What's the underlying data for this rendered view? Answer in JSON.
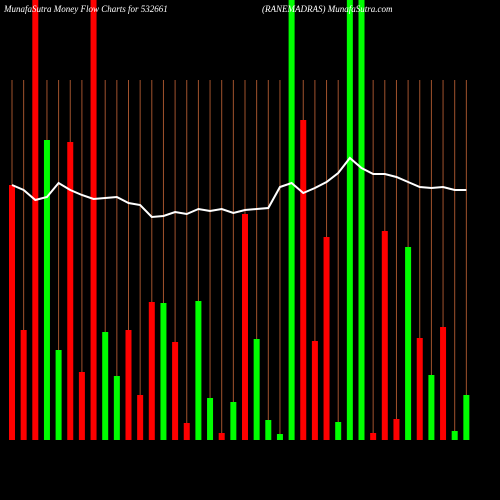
{
  "chart_data": {
    "type": "bar",
    "title": "MunafaSutra  Money Flow  Charts for 532661",
    "subtitle": "(RANEMADRAS) MunafaSutra.com",
    "categories": [
      null,
      null,
      null,
      null,
      null,
      null,
      null,
      null,
      null,
      null,
      null,
      null,
      null,
      null,
      null,
      null,
      null,
      null,
      null,
      null,
      null,
      null,
      null,
      null,
      null,
      null,
      null,
      null,
      null,
      null,
      null,
      null,
      null,
      null,
      null,
      null,
      null,
      null,
      null,
      null
    ],
    "ylim": [
      0,
      440
    ],
    "series": [
      {
        "type": "bar",
        "values": [
          255,
          110,
          440,
          300,
          90,
          298,
          68,
          440,
          108,
          64,
          110,
          45,
          138,
          137,
          98,
          17,
          139,
          42,
          7,
          38,
          226,
          101,
          20,
          6,
          440,
          320,
          99,
          203,
          18,
          440,
          440,
          7,
          209,
          21,
          193,
          102,
          65,
          113,
          9,
          45
        ],
        "colors": [
          "#ff0000",
          "#ff0000",
          "#ff0000",
          "#00ff00",
          "#00ff00",
          "#ff0000",
          "#ff0000",
          "#ff0000",
          "#00ff00",
          "#00ff00",
          "#ff0000",
          "#ff0000",
          "#ff0000",
          "#00ff00",
          "#ff0000",
          "#ff0000",
          "#00ff00",
          "#00ff00",
          "#ff0000",
          "#00ff00",
          "#ff0000",
          "#00ff00",
          "#00ff00",
          "#00ff00",
          "#00ff00",
          "#ff0000",
          "#ff0000",
          "#ff0000",
          "#00ff00",
          "#00ff00",
          "#00ff00",
          "#ff0000",
          "#ff0000",
          "#ff0000",
          "#00ff00",
          "#ff0000",
          "#00ff00",
          "#ff0000",
          "#00ff00",
          "#00ff00"
        ]
      },
      {
        "type": "line",
        "color": "#ffffff",
        "values": [
          255,
          250,
          240,
          243,
          257,
          250,
          245,
          241,
          242,
          243,
          237,
          235,
          223,
          224,
          228,
          226,
          231,
          229,
          231,
          227,
          230,
          231,
          232,
          253,
          257,
          247,
          252,
          258,
          267,
          282,
          272,
          266,
          266,
          263,
          258,
          253,
          252,
          253,
          250,
          250
        ]
      }
    ]
  }
}
